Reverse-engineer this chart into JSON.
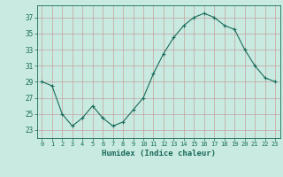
{
  "x": [
    0,
    1,
    2,
    3,
    4,
    5,
    6,
    7,
    8,
    9,
    10,
    11,
    12,
    13,
    14,
    15,
    16,
    17,
    18,
    19,
    20,
    21,
    22,
    23
  ],
  "y": [
    29.0,
    28.5,
    25.0,
    23.5,
    24.5,
    26.0,
    24.5,
    23.5,
    24.0,
    25.5,
    27.0,
    30.0,
    32.5,
    34.5,
    36.0,
    37.0,
    37.5,
    37.0,
    36.0,
    35.5,
    33.0,
    31.0,
    29.5,
    29.0
  ],
  "xlabel": "Humidex (Indice chaleur)",
  "line_color": "#1a6b5a",
  "marker": "+",
  "bg_color": "#c8eae0",
  "grid_color": "#c8a0a0",
  "text_color": "#1a6b5a",
  "ylim": [
    22.0,
    38.5
  ],
  "yticks": [
    23,
    25,
    27,
    29,
    31,
    33,
    35,
    37
  ],
  "xlim": [
    -0.5,
    23.5
  ],
  "figwidth": 3.2,
  "figheight": 2.0,
  "dpi": 100
}
